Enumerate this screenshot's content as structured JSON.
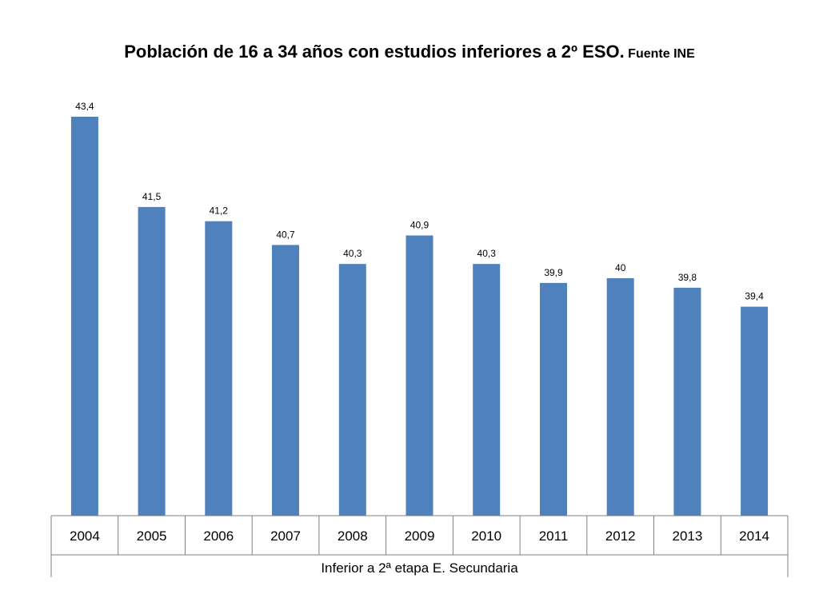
{
  "chart_data": {
    "type": "bar",
    "title": "Población de 16 a 34 años con estudios inferiores a 2º ESO.",
    "subtitle": "Fuente INE",
    "categories": [
      "2004",
      "2005",
      "2006",
      "2007",
      "2008",
      "2009",
      "2010",
      "2011",
      "2012",
      "2013",
      "2014"
    ],
    "series": [
      {
        "name": "Inferior a 2ª etapa E. Secundaria",
        "values": [
          43.4,
          41.5,
          41.2,
          40.7,
          40.3,
          40.9,
          40.3,
          39.9,
          40,
          39.8,
          39.4
        ]
      }
    ],
    "data_labels": [
      "43,4",
      "41,5",
      "41,2",
      "40,7",
      "40,3",
      "40,9",
      "40,3",
      "39,9",
      "40",
      "39,8",
      "39,4"
    ],
    "bar_color": "#4F81BD",
    "y_axis_visible": false,
    "grid": false,
    "legend": "bottom (in data table row)"
  }
}
